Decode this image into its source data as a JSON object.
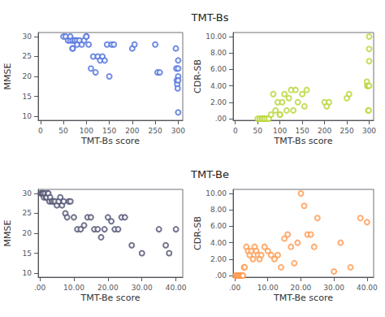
{
  "chart_data": [
    {
      "type": "scatter",
      "title": "TMT-Bs",
      "xlabel": "TMT-Bs score",
      "ylabel": "MMSE",
      "xlim": [
        -5,
        310
      ],
      "ylim": [
        9,
        31
      ],
      "xticks": [
        0,
        50,
        100,
        150,
        200,
        250,
        300
      ],
      "yticks": [
        10,
        15,
        20,
        25,
        30
      ],
      "grid": false,
      "x": [
        50,
        55,
        60,
        65,
        65,
        70,
        70,
        70,
        75,
        75,
        80,
        80,
        85,
        90,
        95,
        100,
        100,
        105,
        110,
        115,
        120,
        125,
        130,
        135,
        140,
        145,
        150,
        155,
        160,
        200,
        205,
        250,
        255,
        260,
        295,
        296,
        297,
        298,
        299,
        300,
        300,
        300,
        300,
        300
      ],
      "values": [
        30,
        30,
        29,
        29,
        30,
        27,
        27,
        29,
        29,
        29,
        29,
        28,
        29,
        28,
        29,
        30,
        30,
        28,
        22,
        25,
        21,
        25,
        24,
        25,
        24,
        28,
        20,
        28,
        28,
        27,
        28,
        28,
        21,
        21,
        27,
        22,
        19,
        18,
        17,
        24,
        22,
        20,
        19,
        11
      ]
    },
    {
      "type": "scatter",
      "xlabel": "TMT-Bs score",
      "ylabel": "CDR-SB",
      "xlim": [
        -5,
        310
      ],
      "ylim": [
        -0.2,
        10.5
      ],
      "xticks": [
        0,
        50,
        100,
        150,
        200,
        250,
        300
      ],
      "yticks": [
        {
          "value": 0.0,
          "label": ".00"
        },
        {
          "value": 2.0,
          "label": "2.00"
        },
        {
          "value": 4.0,
          "label": "4.00"
        },
        {
          "value": 6.0,
          "label": "6.00"
        },
        {
          "value": 8.0,
          "label": "8.00"
        },
        {
          "value": 10.0,
          "label": "10.00"
        }
      ],
      "grid": false,
      "x": [
        50,
        55,
        60,
        60,
        65,
        65,
        70,
        75,
        80,
        85,
        90,
        95,
        100,
        100,
        105,
        110,
        115,
        120,
        125,
        130,
        135,
        140,
        150,
        155,
        160,
        200,
        205,
        210,
        250,
        255,
        295,
        296,
        297,
        298,
        299,
        300,
        300,
        300,
        300
      ],
      "values": [
        0.0,
        0.0,
        0.0,
        0.0,
        0.0,
        0.0,
        0.0,
        0.0,
        0.5,
        3.0,
        1.0,
        2.0,
        0.5,
        0.5,
        2.0,
        3.0,
        1.0,
        2.5,
        3.5,
        1.0,
        3.5,
        2.0,
        3.0,
        1.5,
        3.5,
        2.0,
        1.5,
        2.0,
        2.5,
        3.0,
        4.5,
        4.0,
        4.0,
        1.0,
        1.0,
        10.0,
        8.5,
        7.0,
        4.0
      ]
    },
    {
      "type": "scatter",
      "title": "TMT-Be",
      "xlabel": "TMT-Be score",
      "ylabel": "MMSE",
      "xlim": [
        -0.5,
        42
      ],
      "ylim": [
        9,
        31
      ],
      "xticks": [
        {
          "value": 0.0,
          "label": ".00"
        },
        {
          "value": 10.0,
          "label": "10.00"
        },
        {
          "value": 20.0,
          "label": "20.00"
        },
        {
          "value": 30.0,
          "label": "30.00"
        },
        {
          "value": 40.0,
          "label": "40.00"
        }
      ],
      "yticks": [
        10,
        15,
        20,
        25,
        30
      ],
      "grid": false,
      "x": [
        0.3,
        0.5,
        0.8,
        1.0,
        1.2,
        1.5,
        1.8,
        2.0,
        2.3,
        2.5,
        2.8,
        3.0,
        3.5,
        4.0,
        4.5,
        5.0,
        5.5,
        6.0,
        6.5,
        7.0,
        7.5,
        8.0,
        8.5,
        9.0,
        10.0,
        11.0,
        12.0,
        13.0,
        14.0,
        15.0,
        16.0,
        17.0,
        18.0,
        19.0,
        20.0,
        21.0,
        22.0,
        23.0,
        24.0,
        25.0,
        27.0,
        30.0,
        35.0,
        37.0,
        38.0,
        40.0
      ],
      "values": [
        30,
        30,
        30,
        30,
        29,
        30,
        29,
        29,
        30,
        30,
        28,
        29,
        28,
        28,
        28,
        27,
        28,
        29,
        27,
        28,
        25,
        24,
        28,
        28,
        24,
        21,
        21,
        22,
        24,
        24,
        21,
        21,
        19,
        21,
        24,
        23,
        21,
        21,
        24,
        24,
        17,
        15,
        21,
        17,
        15,
        21
      ]
    },
    {
      "type": "scatter",
      "xlabel": "TMT-Be score",
      "ylabel": "CDR-SB",
      "xlim": [
        -0.5,
        42
      ],
      "ylim": [
        -0.2,
        10.5
      ],
      "xticks": [
        {
          "value": 0.0,
          "label": ".00"
        },
        {
          "value": 10.0,
          "label": "10.00"
        },
        {
          "value": 20.0,
          "label": "20.00"
        },
        {
          "value": 30.0,
          "label": "30.00"
        },
        {
          "value": 40.0,
          "label": "40.00"
        }
      ],
      "yticks": [
        {
          "value": 0.0,
          "label": ".00"
        },
        {
          "value": 2.0,
          "label": "2.00"
        },
        {
          "value": 4.0,
          "label": "4.00"
        },
        {
          "value": 6.0,
          "label": "6.00"
        },
        {
          "value": 8.0,
          "label": "8.00"
        },
        {
          "value": 10.0,
          "label": "10.00"
        }
      ],
      "grid": false,
      "x": [
        0.3,
        0.5,
        0.8,
        1.0,
        1.2,
        1.5,
        1.8,
        2.0,
        2.3,
        2.5,
        2.8,
        3.0,
        3.5,
        4.0,
        4.5,
        5.0,
        5.5,
        6.0,
        6.5,
        7.0,
        7.5,
        8.0,
        9.0,
        10.0,
        11.0,
        12.0,
        13.0,
        14.0,
        15.0,
        16.0,
        17.0,
        18.0,
        19.0,
        20.0,
        21.0,
        22.0,
        23.0,
        24.0,
        25.0,
        30.0,
        32.0,
        35.0,
        38.0,
        40.0
      ],
      "values": [
        0.0,
        0.0,
        0.0,
        0.0,
        0.0,
        0.0,
        0.0,
        0.0,
        0.0,
        0.0,
        1.0,
        1.0,
        3.5,
        3.0,
        2.5,
        3.0,
        2.0,
        3.5,
        3.0,
        2.5,
        2.0,
        2.5,
        3.5,
        3.0,
        2.5,
        2.0,
        2.5,
        1.0,
        4.5,
        5.0,
        3.5,
        1.5,
        4.0,
        10.0,
        8.5,
        5.0,
        5.0,
        3.5,
        7.0,
        0.5,
        4.0,
        1.0,
        7.0,
        6.5
      ]
    }
  ]
}
